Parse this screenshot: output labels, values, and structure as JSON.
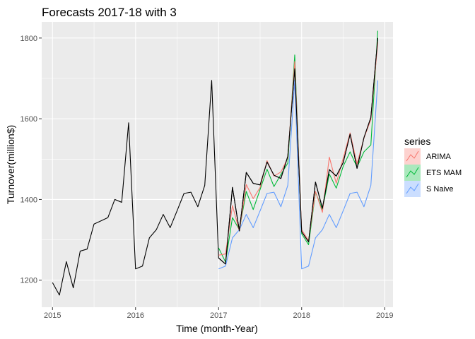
{
  "chart_data": {
    "type": "line",
    "title": "Forecasts 2017-18 with 3",
    "xlabel": "Time (month-Year)",
    "ylabel": "Turnover(million$)",
    "xlim": [
      2014.87,
      2019.1
    ],
    "ylim": [
      1133,
      1840
    ],
    "x_ticks": [
      2015,
      2016,
      2017,
      2018,
      2019
    ],
    "x_tick_labels": [
      "2015",
      "2016",
      "2017",
      "2018",
      "2019"
    ],
    "y_ticks": [
      1200,
      1400,
      1600,
      1800
    ],
    "y_tick_labels": [
      "1200",
      "1400",
      "1600",
      "1800"
    ],
    "grid": true,
    "legend": {
      "title": "series",
      "position": "right"
    },
    "history": {
      "start": 2015,
      "values": [
        1194,
        1163,
        1246,
        1181,
        1272,
        1277,
        1339,
        1347,
        1355,
        1400,
        1393,
        1590,
        1228,
        1235,
        1305,
        1325,
        1363,
        1330,
        1372,
        1415,
        1418,
        1382,
        1435,
        1695,
        1255,
        1240,
        1430,
        1322,
        1467,
        1440,
        1436,
        1493,
        1460,
        1452,
        1507,
        1724,
        1320,
        1295,
        1443,
        1378,
        1474,
        1458,
        1491,
        1562,
        1477,
        1553,
        1603,
        1800
      ]
    },
    "forecast_start": 2017,
    "series": [
      {
        "name": "ARIMA",
        "color": "#F8766D",
        "values": [
          1262,
          1265,
          1385,
          1322,
          1437,
          1402,
          1430,
          1496,
          1458,
          1468,
          1503,
          1742,
          1325,
          1298,
          1420,
          1368,
          1505,
          1440,
          1502,
          1565,
          1488,
          1552,
          1598,
          1790
        ]
      },
      {
        "name": "ETS MAM",
        "color": "#00BA38",
        "values": [
          1280,
          1245,
          1355,
          1325,
          1420,
          1375,
          1425,
          1475,
          1432,
          1462,
          1490,
          1758,
          1315,
          1288,
          1418,
          1375,
          1463,
          1428,
          1482,
          1518,
          1480,
          1518,
          1535,
          1818
        ]
      },
      {
        "name": "S Naive",
        "color": "#619CFF",
        "values": [
          1228,
          1235,
          1305,
          1325,
          1363,
          1330,
          1372,
          1415,
          1418,
          1382,
          1435,
          1695,
          1228,
          1235,
          1305,
          1325,
          1363,
          1330,
          1372,
          1415,
          1418,
          1382,
          1435,
          1695
        ]
      }
    ]
  }
}
